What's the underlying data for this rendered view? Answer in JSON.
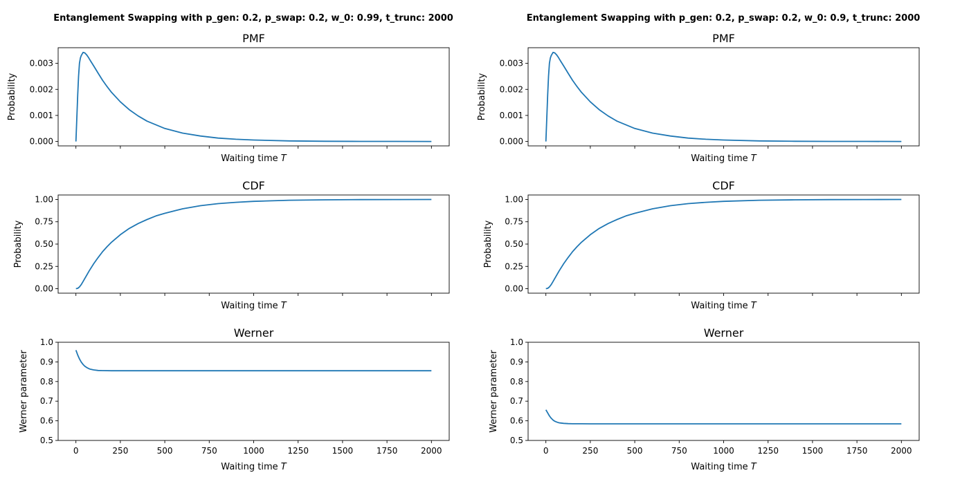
{
  "colors": {
    "line": "#1f77b4",
    "axes": "#000000",
    "background": "#ffffff"
  },
  "figure": {
    "columns": [
      {
        "suptitle": "Entanglement Swapping with p_gen: 0.2, p_swap: 0.2, w_0: 0.99, t_trunc: 2000"
      },
      {
        "suptitle": "Entanglement Swapping with p_gen: 0.2, p_swap: 0.2, w_0: 0.9, t_trunc: 2000"
      }
    ]
  },
  "chart_data": [
    {
      "type": "line",
      "column": 0,
      "row": 0,
      "title": "PMF",
      "xlabel": "Waiting time T",
      "ylabel": "Probability",
      "xlim": [
        -100,
        2100
      ],
      "ylim": [
        -0.00017,
        0.0036
      ],
      "xticks": [
        0,
        250,
        500,
        750,
        1000,
        1250,
        1500,
        1750,
        2000
      ],
      "xtick_labels_visible": false,
      "yticks": [
        0.0,
        0.001,
        0.002,
        0.003
      ],
      "ytick_labels": [
        "0.000",
        "0.001",
        "0.002",
        "0.003"
      ],
      "grid": false,
      "series": [
        {
          "x": [
            0,
            5,
            10,
            15,
            20,
            25,
            30,
            40,
            50,
            60,
            70,
            80,
            100,
            125,
            150,
            175,
            200,
            250,
            300,
            350,
            400,
            500,
            600,
            700,
            800,
            900,
            1000,
            1200,
            1400,
            1600,
            1800,
            2000
          ],
          "y": [
            0.0,
            0.0009,
            0.0018,
            0.0025,
            0.003,
            0.0032,
            0.0033,
            0.00342,
            0.0034,
            0.00333,
            0.00323,
            0.00312,
            0.0029,
            0.00262,
            0.00235,
            0.00211,
            0.00189,
            0.00152,
            0.00122,
            0.00098,
            0.00078,
            0.0005,
            0.00032,
            0.00021,
            0.00013,
            8.5e-05,
            5.5e-05,
            2.2e-05,
            9e-06,
            3.5e-06,
            1.4e-06,
            6e-07
          ]
        }
      ]
    },
    {
      "type": "line",
      "column": 0,
      "row": 1,
      "title": "CDF",
      "xlabel": "Waiting time T",
      "ylabel": "Probability",
      "xlim": [
        -100,
        2100
      ],
      "ylim": [
        -0.05,
        1.05
      ],
      "xticks": [
        0,
        250,
        500,
        750,
        1000,
        1250,
        1500,
        1750,
        2000
      ],
      "xtick_labels_visible": false,
      "yticks": [
        0.0,
        0.25,
        0.5,
        0.75,
        1.0
      ],
      "ytick_labels": [
        "0.00",
        "0.25",
        "0.50",
        "0.75",
        "1.00"
      ],
      "grid": false,
      "series": [
        {
          "x": [
            0,
            10,
            20,
            30,
            40,
            50,
            75,
            100,
            125,
            150,
            175,
            200,
            250,
            300,
            350,
            400,
            450,
            500,
            600,
            700,
            800,
            900,
            1000,
            1200,
            1400,
            1600,
            1800,
            2000
          ],
          "y": [
            0.0,
            0.004,
            0.02,
            0.046,
            0.08,
            0.114,
            0.2,
            0.28,
            0.35,
            0.415,
            0.47,
            0.52,
            0.605,
            0.675,
            0.73,
            0.775,
            0.815,
            0.845,
            0.895,
            0.93,
            0.953,
            0.968,
            0.979,
            0.991,
            0.996,
            0.998,
            0.999,
            1.0
          ]
        }
      ]
    },
    {
      "type": "line",
      "column": 0,
      "row": 2,
      "title": "Werner",
      "xlabel": "Waiting time T",
      "ylabel": "Werner parameter",
      "xlim": [
        -100,
        2100
      ],
      "ylim": [
        0.5,
        1.0
      ],
      "xticks": [
        0,
        250,
        500,
        750,
        1000,
        1250,
        1500,
        1750,
        2000
      ],
      "xtick_labels": [
        "0",
        "250",
        "500",
        "750",
        "1000",
        "1250",
        "1500",
        "1750",
        "2000"
      ],
      "xtick_labels_visible": true,
      "yticks": [
        0.5,
        0.6,
        0.7,
        0.8,
        0.9,
        1.0
      ],
      "ytick_labels": [
        "0.5",
        "0.6",
        "0.7",
        "0.8",
        "0.9",
        "1.0"
      ],
      "grid": false,
      "series": [
        {
          "x": [
            0,
            10,
            20,
            30,
            40,
            50,
            60,
            70,
            80,
            100,
            125,
            150,
            200,
            250,
            300,
            500,
            1000,
            1500,
            2000
          ],
          "y": [
            0.96,
            0.935,
            0.915,
            0.899,
            0.887,
            0.878,
            0.872,
            0.867,
            0.863,
            0.859,
            0.8565,
            0.8555,
            0.855,
            0.855,
            0.855,
            0.855,
            0.855,
            0.855,
            0.855
          ]
        }
      ]
    },
    {
      "type": "line",
      "column": 1,
      "row": 0,
      "title": "PMF",
      "xlabel": "Waiting time T",
      "ylabel": "Probability",
      "xlim": [
        -100,
        2100
      ],
      "ylim": [
        -0.00017,
        0.0036
      ],
      "xticks": [
        0,
        250,
        500,
        750,
        1000,
        1250,
        1500,
        1750,
        2000
      ],
      "xtick_labels_visible": false,
      "yticks": [
        0.0,
        0.001,
        0.002,
        0.003
      ],
      "ytick_labels": [
        "0.000",
        "0.001",
        "0.002",
        "0.003"
      ],
      "grid": false,
      "series": [
        {
          "x": [
            0,
            5,
            10,
            15,
            20,
            25,
            30,
            40,
            50,
            60,
            70,
            80,
            100,
            125,
            150,
            175,
            200,
            250,
            300,
            350,
            400,
            500,
            600,
            700,
            800,
            900,
            1000,
            1200,
            1400,
            1600,
            1800,
            2000
          ],
          "y": [
            0.0,
            0.0009,
            0.0018,
            0.0025,
            0.003,
            0.0032,
            0.0033,
            0.00342,
            0.0034,
            0.00333,
            0.00323,
            0.00312,
            0.0029,
            0.00262,
            0.00235,
            0.00211,
            0.00189,
            0.00152,
            0.00122,
            0.00098,
            0.00078,
            0.0005,
            0.00032,
            0.00021,
            0.00013,
            8.5e-05,
            5.5e-05,
            2.2e-05,
            9e-06,
            3.5e-06,
            1.4e-06,
            6e-07
          ]
        }
      ]
    },
    {
      "type": "line",
      "column": 1,
      "row": 1,
      "title": "CDF",
      "xlabel": "Waiting time T",
      "ylabel": "Probability",
      "xlim": [
        -100,
        2100
      ],
      "ylim": [
        -0.05,
        1.05
      ],
      "xticks": [
        0,
        250,
        500,
        750,
        1000,
        1250,
        1500,
        1750,
        2000
      ],
      "xtick_labels_visible": false,
      "yticks": [
        0.0,
        0.25,
        0.5,
        0.75,
        1.0
      ],
      "ytick_labels": [
        "0.00",
        "0.25",
        "0.50",
        "0.75",
        "1.00"
      ],
      "grid": false,
      "series": [
        {
          "x": [
            0,
            10,
            20,
            30,
            40,
            50,
            75,
            100,
            125,
            150,
            175,
            200,
            250,
            300,
            350,
            400,
            450,
            500,
            600,
            700,
            800,
            900,
            1000,
            1200,
            1400,
            1600,
            1800,
            2000
          ],
          "y": [
            0.0,
            0.004,
            0.02,
            0.046,
            0.08,
            0.114,
            0.2,
            0.28,
            0.35,
            0.415,
            0.47,
            0.52,
            0.605,
            0.675,
            0.73,
            0.775,
            0.815,
            0.845,
            0.895,
            0.93,
            0.953,
            0.968,
            0.979,
            0.991,
            0.996,
            0.998,
            0.999,
            1.0
          ]
        }
      ]
    },
    {
      "type": "line",
      "column": 1,
      "row": 2,
      "title": "Werner",
      "xlabel": "Waiting time T",
      "ylabel": "Werner parameter",
      "xlim": [
        -100,
        2100
      ],
      "ylim": [
        0.5,
        1.0
      ],
      "xticks": [
        0,
        250,
        500,
        750,
        1000,
        1250,
        1500,
        1750,
        2000
      ],
      "xtick_labels": [
        "0",
        "250",
        "500",
        "750",
        "1000",
        "1250",
        "1500",
        "1750",
        "2000"
      ],
      "xtick_labels_visible": true,
      "yticks": [
        0.5,
        0.6,
        0.7,
        0.8,
        0.9,
        1.0
      ],
      "ytick_labels": [
        "0.5",
        "0.6",
        "0.7",
        "0.8",
        "0.9",
        "1.0"
      ],
      "grid": false,
      "series": [
        {
          "x": [
            0,
            10,
            20,
            30,
            40,
            50,
            60,
            70,
            80,
            100,
            125,
            150,
            200,
            250,
            300,
            500,
            1000,
            1500,
            2000
          ],
          "y": [
            0.656,
            0.64,
            0.625,
            0.613,
            0.604,
            0.598,
            0.594,
            0.591,
            0.589,
            0.587,
            0.5855,
            0.585,
            0.5847,
            0.5846,
            0.5846,
            0.5846,
            0.5846,
            0.5846,
            0.5846
          ]
        }
      ]
    }
  ]
}
